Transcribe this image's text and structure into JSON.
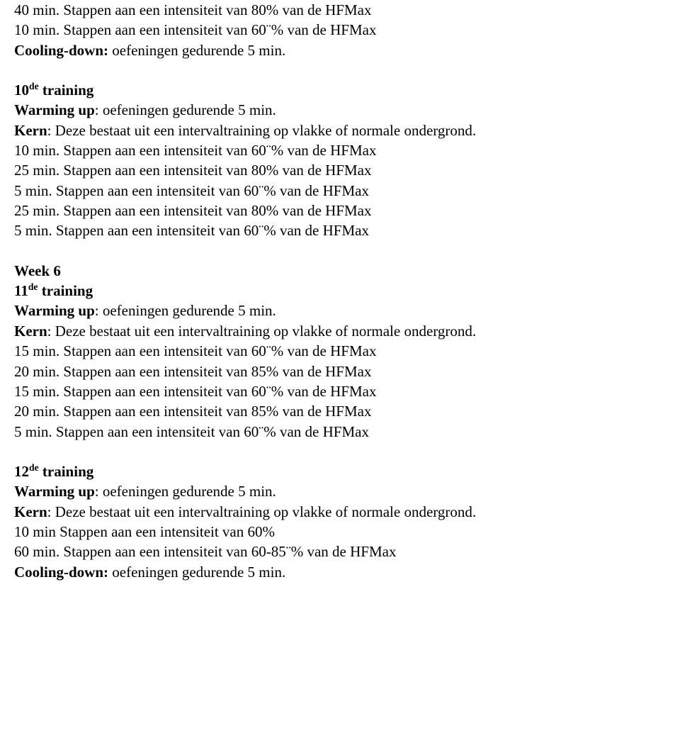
{
  "block1": {
    "l1": "40 min. Stappen aan een intensiteit van 80% van de HFMax",
    "l2": "10 min. Stappen aan een intensiteit van 60¨% van de HFMax",
    "l3a": "Cooling-down:",
    "l3b": " oefeningen gedurende 5 min."
  },
  "block2": {
    "l1a": "10",
    "l1b": "de",
    "l1c": " training",
    "l2a": "Warming up",
    "l2b": ": oefeningen gedurende 5 min.",
    "l3a": "Kern",
    "l3b": ": Deze bestaat uit een intervaltraining op vlakke of normale ondergrond.",
    "l4": "10 min. Stappen aan een intensiteit van 60¨% van de HFMax",
    "l5": "25 min. Stappen aan een intensiteit van 80% van de HFMax",
    "l6": "5 min. Stappen aan een intensiteit van 60¨% van de HFMax",
    "l7": "25 min. Stappen aan een intensiteit van 80% van de HFMax",
    "l8": "5 min. Stappen aan een intensiteit van 60¨% van de HFMax"
  },
  "block3": {
    "w": "Week 6",
    "l1a": "11",
    "l1b": "de",
    "l1c": "  training",
    "l2a": "Warming up",
    "l2b": ": oefeningen gedurende 5 min.",
    "l3a": "Kern",
    "l3b": ": Deze bestaat uit een intervaltraining op vlakke of normale ondergrond.",
    "l4": "15 min. Stappen aan een intensiteit van 60¨% van de HFMax",
    "l5": "20 min. Stappen aan een intensiteit van 85% van de HFMax",
    "l6": "15 min. Stappen aan een intensiteit van 60¨% van de HFMax",
    "l7": "20 min. Stappen aan een intensiteit van 85% van de HFMax",
    "l8": "5 min. Stappen aan een intensiteit van 60¨% van de HFMax"
  },
  "block4": {
    "l1a": "12",
    "l1b": "de",
    "l1c": " training",
    "l2a": "Warming up",
    "l2b": ": oefeningen gedurende 5 min.",
    "l3a": "Kern",
    "l3b": ": Deze bestaat uit een intervaltraining op vlakke of normale ondergrond.",
    "l4": " 10 min Stappen aan een intensiteit van 60%",
    "l5": "60 min. Stappen aan een intensiteit van 60-85¨% van de HFMax",
    "l6a": "Cooling-down:",
    "l6b": " oefeningen gedurende 5 min."
  }
}
